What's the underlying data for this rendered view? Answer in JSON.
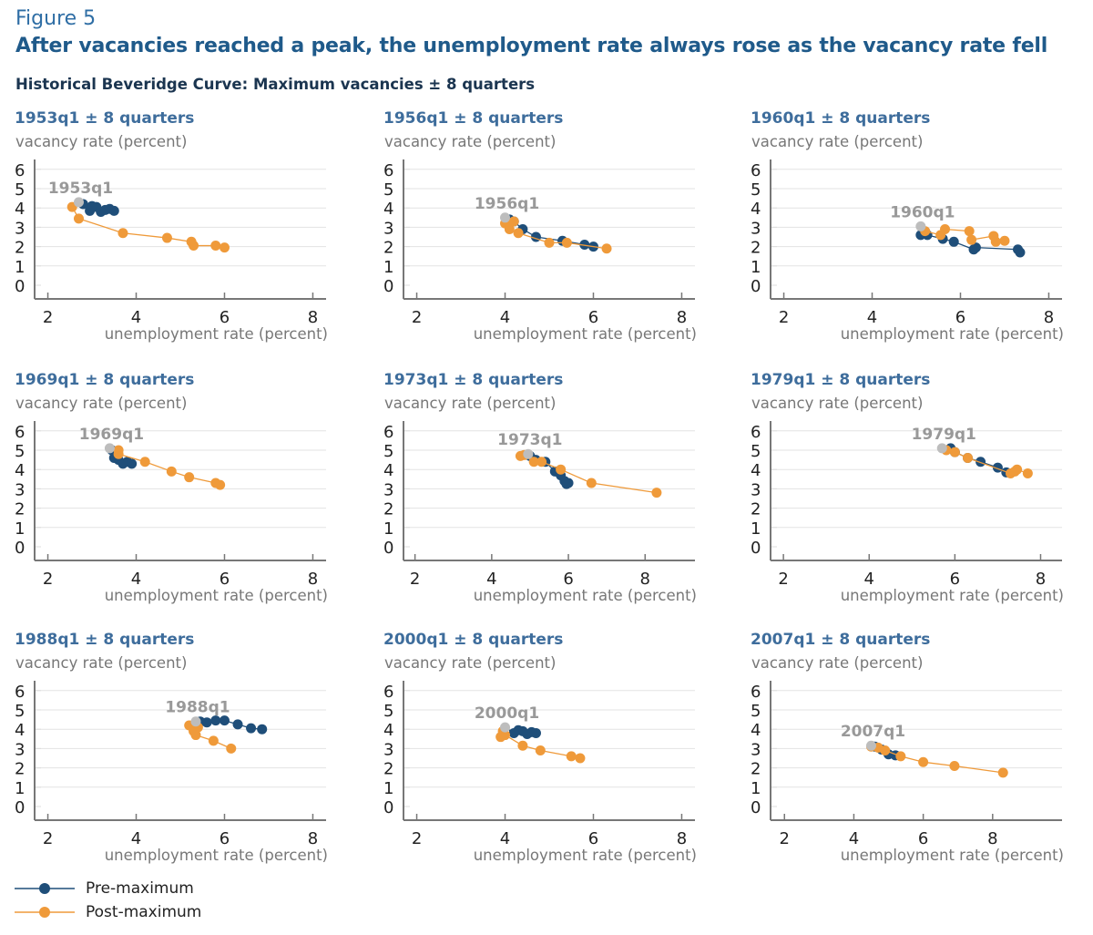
{
  "figure_label": "Figure 5",
  "headline": "After vacancies reached a peak, the unemployment rate always rose as the vacancy rate fell",
  "subtitle": "Historical Beveridge Curve: Maximum vacancies ± 8 quarters",
  "colors": {
    "pre": "#1f4e79",
    "post": "#ef9a3a",
    "peak": "#bdbdbd",
    "title": "#3e6d9c"
  },
  "legend": [
    {
      "label": "Pre-maximum",
      "color": "#1f4e79"
    },
    {
      "label": "Post-maximum",
      "color": "#ef9a3a"
    }
  ],
  "chart_data": [
    {
      "type": "line",
      "title": "1953q1 ± 8 quarters",
      "ylabel": "vacancy rate (percent)",
      "xlabel": "unemployment rate (percent)",
      "peak_label": "1953q1",
      "xlim": [
        1.7,
        8.3
      ],
      "ylim": [
        0,
        6
      ],
      "xticks": [
        2,
        4,
        6,
        8
      ],
      "yticks": [
        0,
        1,
        2,
        3,
        4,
        5,
        6
      ],
      "grid": true,
      "peak": [
        2.7,
        4.3
      ],
      "series": [
        {
          "name": "Pre-maximum",
          "points": [
            [
              3.5,
              3.85
            ],
            [
              3.4,
              3.95
            ],
            [
              3.3,
              3.9
            ],
            [
              3.2,
              3.8
            ],
            [
              3.1,
              4.05
            ],
            [
              2.95,
              3.85
            ],
            [
              3.0,
              4.1
            ],
            [
              2.8,
              4.2
            ]
          ]
        },
        {
          "name": "Post-maximum",
          "points": [
            [
              2.55,
              4.05
            ],
            [
              2.7,
              3.45
            ],
            [
              3.7,
              2.7
            ],
            [
              4.7,
              2.45
            ],
            [
              5.25,
              2.25
            ],
            [
              5.3,
              2.05
            ],
            [
              5.8,
              2.05
            ],
            [
              6.0,
              1.95
            ]
          ]
        }
      ]
    },
    {
      "type": "line",
      "title": "1956q1 ± 8 quarters",
      "ylabel": "vacancy rate (percent)",
      "xlabel": "unemployment rate (percent)",
      "peak_label": "1956q1",
      "xlim": [
        1.7,
        8.3
      ],
      "ylim": [
        0,
        6
      ],
      "xticks": [
        2,
        4,
        6,
        8
      ],
      "yticks": [
        0,
        1,
        2,
        3,
        4,
        5,
        6
      ],
      "grid": true,
      "peak": [
        4.0,
        3.5
      ],
      "series": [
        {
          "name": "Pre-maximum",
          "points": [
            [
              6.0,
              2.0
            ],
            [
              5.8,
              2.1
            ],
            [
              5.3,
              2.3
            ],
            [
              4.7,
              2.5
            ],
            [
              4.4,
              2.9
            ],
            [
              4.2,
              3.3
            ],
            [
              4.1,
              3.4
            ]
          ]
        },
        {
          "name": "Post-maximum",
          "points": [
            [
              4.0,
              3.2
            ],
            [
              4.2,
              3.3
            ],
            [
              4.1,
              2.9
            ],
            [
              4.3,
              2.7
            ],
            [
              5.0,
              2.2
            ],
            [
              5.4,
              2.2
            ],
            [
              6.3,
              1.9
            ]
          ]
        }
      ]
    },
    {
      "type": "line",
      "title": "1960q1 ± 8 quarters",
      "ylabel": "vacancy rate (percent)",
      "xlabel": "unemployment rate (percent)",
      "peak_label": "1960q1",
      "xlim": [
        1.7,
        8.3
      ],
      "ylim": [
        0,
        6
      ],
      "xticks": [
        2,
        4,
        6,
        8
      ],
      "yticks": [
        0,
        1,
        2,
        3,
        4,
        5,
        6
      ],
      "grid": true,
      "peak": [
        5.1,
        3.05
      ],
      "series": [
        {
          "name": "Pre-maximum",
          "points": [
            [
              7.35,
              1.7
            ],
            [
              7.3,
              1.85
            ],
            [
              6.35,
              1.95
            ],
            [
              6.3,
              1.85
            ],
            [
              5.85,
              2.25
            ],
            [
              5.6,
              2.4
            ],
            [
              5.25,
              2.6
            ],
            [
              5.1,
              2.6
            ]
          ]
        },
        {
          "name": "Post-maximum",
          "points": [
            [
              5.2,
              2.8
            ],
            [
              5.55,
              2.6
            ],
            [
              5.65,
              2.9
            ],
            [
              6.2,
              2.8
            ],
            [
              6.25,
              2.35
            ],
            [
              6.75,
              2.55
            ],
            [
              6.8,
              2.25
            ],
            [
              7.0,
              2.3
            ]
          ]
        }
      ]
    },
    {
      "type": "line",
      "title": "1969q1 ± 8 quarters",
      "ylabel": "vacancy rate (percent)",
      "xlabel": "unemployment rate (percent)",
      "peak_label": "1969q1",
      "xlim": [
        1.7,
        8.3
      ],
      "ylim": [
        0,
        6
      ],
      "xticks": [
        2,
        4,
        6,
        8
      ],
      "yticks": [
        0,
        1,
        2,
        3,
        4,
        5,
        6
      ],
      "grid": true,
      "peak": [
        3.4,
        5.1
      ],
      "series": [
        {
          "name": "Pre-maximum",
          "points": [
            [
              3.9,
              4.3
            ],
            [
              3.8,
              4.4
            ],
            [
              3.7,
              4.3
            ],
            [
              3.6,
              4.5
            ],
            [
              3.5,
              4.6
            ],
            [
              3.5,
              4.9
            ],
            [
              3.45,
              5.0
            ]
          ]
        },
        {
          "name": "Post-maximum",
          "points": [
            [
              3.6,
              5.0
            ],
            [
              3.6,
              4.8
            ],
            [
              4.2,
              4.4
            ],
            [
              4.8,
              3.9
            ],
            [
              5.2,
              3.6
            ],
            [
              5.8,
              3.3
            ],
            [
              5.9,
              3.2
            ]
          ]
        }
      ]
    },
    {
      "type": "line",
      "title": "1973q1 ± 8 quarters",
      "ylabel": "vacancy rate (percent)",
      "xlabel": "unemployment rate (percent)",
      "peak_label": "1973q1",
      "xlim": [
        1.7,
        9.3
      ],
      "ylim": [
        0,
        6
      ],
      "xticks": [
        2,
        4,
        6,
        8
      ],
      "yticks": [
        0,
        1,
        2,
        3,
        4,
        5,
        6
      ],
      "grid": true,
      "peak": [
        4.95,
        4.8
      ],
      "series": [
        {
          "name": "Pre-maximum",
          "points": [
            [
              6.0,
              3.3
            ],
            [
              5.95,
              3.25
            ],
            [
              5.9,
              3.4
            ],
            [
              5.8,
              3.7
            ],
            [
              5.65,
              3.9
            ],
            [
              5.4,
              4.4
            ],
            [
              5.15,
              4.5
            ],
            [
              5.0,
              4.7
            ]
          ]
        },
        {
          "name": "Post-maximum",
          "points": [
            [
              4.75,
              4.7
            ],
            [
              4.85,
              4.75
            ],
            [
              5.1,
              4.4
            ],
            [
              5.3,
              4.4
            ],
            [
              5.8,
              4.0
            ],
            [
              6.6,
              3.3
            ],
            [
              8.3,
              2.8
            ]
          ]
        }
      ]
    },
    {
      "type": "line",
      "title": "1979q1 ± 8 quarters",
      "ylabel": "vacancy rate (percent)",
      "xlabel": "unemployment rate (percent)",
      "peak_label": "1979q1",
      "xlim": [
        1.7,
        8.5
      ],
      "ylim": [
        0,
        6
      ],
      "xticks": [
        2,
        4,
        6,
        8
      ],
      "yticks": [
        0,
        1,
        2,
        3,
        4,
        5,
        6
      ],
      "grid": true,
      "peak": [
        5.7,
        5.1
      ],
      "series": [
        {
          "name": "Pre-maximum",
          "points": [
            [
              7.2,
              3.85
            ],
            [
              7.0,
              4.1
            ],
            [
              6.6,
              4.4
            ],
            [
              6.3,
              4.6
            ],
            [
              6.0,
              4.9
            ],
            [
              5.9,
              5.1
            ]
          ]
        },
        {
          "name": "Post-maximum",
          "points": [
            [
              5.8,
              5.0
            ],
            [
              6.0,
              4.9
            ],
            [
              6.3,
              4.6
            ],
            [
              7.3,
              3.8
            ],
            [
              7.4,
              3.9
            ],
            [
              7.45,
              4.0
            ],
            [
              7.7,
              3.8
            ]
          ]
        }
      ]
    },
    {
      "type": "line",
      "title": "1988q1 ± 8 quarters",
      "ylabel": "vacancy rate (percent)",
      "xlabel": "unemployment rate (percent)",
      "peak_label": "1988q1",
      "xlim": [
        1.7,
        8.3
      ],
      "ylim": [
        0,
        6
      ],
      "xticks": [
        2,
        4,
        6,
        8
      ],
      "yticks": [
        0,
        1,
        2,
        3,
        4,
        5,
        6
      ],
      "grid": true,
      "peak": [
        5.35,
        4.4
      ],
      "series": [
        {
          "name": "Pre-maximum",
          "points": [
            [
              6.85,
              4.0
            ],
            [
              6.6,
              4.05
            ],
            [
              6.3,
              4.25
            ],
            [
              6.0,
              4.45
            ],
            [
              5.8,
              4.45
            ],
            [
              5.6,
              4.35
            ],
            [
              5.45,
              4.4
            ]
          ]
        },
        {
          "name": "Post-maximum",
          "points": [
            [
              5.2,
              4.2
            ],
            [
              5.3,
              3.9
            ],
            [
              5.4,
              4.1
            ],
            [
              5.35,
              3.7
            ],
            [
              5.75,
              3.4
            ],
            [
              6.15,
              3.0
            ]
          ]
        }
      ]
    },
    {
      "type": "line",
      "title": "2000q1 ± 8 quarters",
      "ylabel": "vacancy rate (percent)",
      "xlabel": "unemployment rate (percent)",
      "peak_label": "2000q1",
      "xlim": [
        1.7,
        8.3
      ],
      "ylim": [
        0,
        6
      ],
      "xticks": [
        2,
        4,
        6,
        8
      ],
      "yticks": [
        0,
        1,
        2,
        3,
        4,
        5,
        6
      ],
      "grid": true,
      "peak": [
        4.0,
        4.1
      ],
      "series": [
        {
          "name": "Pre-maximum",
          "points": [
            [
              4.7,
              3.8
            ],
            [
              4.6,
              3.85
            ],
            [
              4.5,
              3.75
            ],
            [
              4.4,
              3.9
            ],
            [
              4.3,
              3.95
            ],
            [
              4.2,
              3.8
            ]
          ]
        },
        {
          "name": "Post-maximum",
          "points": [
            [
              3.9,
              3.6
            ],
            [
              3.95,
              3.9
            ],
            [
              4.0,
              3.7
            ],
            [
              4.4,
              3.15
            ],
            [
              4.8,
              2.9
            ],
            [
              5.5,
              2.6
            ],
            [
              5.7,
              2.5
            ]
          ]
        }
      ]
    },
    {
      "type": "line",
      "title": "2007q1 ± 8 quarters",
      "ylabel": "vacancy rate (percent)",
      "xlabel": "unemployment rate (percent)",
      "peak_label": "2007q1",
      "xlim": [
        1.6,
        10.0
      ],
      "ylim": [
        0,
        6
      ],
      "xticks": [
        2,
        4,
        6,
        8
      ],
      "yticks": [
        0,
        1,
        2,
        3,
        4,
        5,
        6
      ],
      "grid": true,
      "peak": [
        4.5,
        3.15
      ],
      "series": [
        {
          "name": "Pre-maximum",
          "points": [
            [
              5.2,
              2.65
            ],
            [
              5.0,
              2.7
            ],
            [
              4.8,
              2.95
            ],
            [
              4.6,
              3.1
            ]
          ]
        },
        {
          "name": "Post-maximum",
          "points": [
            [
              4.5,
              3.1
            ],
            [
              4.7,
              3.05
            ],
            [
              4.9,
              2.9
            ],
            [
              5.35,
              2.6
            ],
            [
              6.0,
              2.3
            ],
            [
              6.9,
              2.1
            ],
            [
              8.3,
              1.75
            ]
          ]
        }
      ]
    }
  ]
}
